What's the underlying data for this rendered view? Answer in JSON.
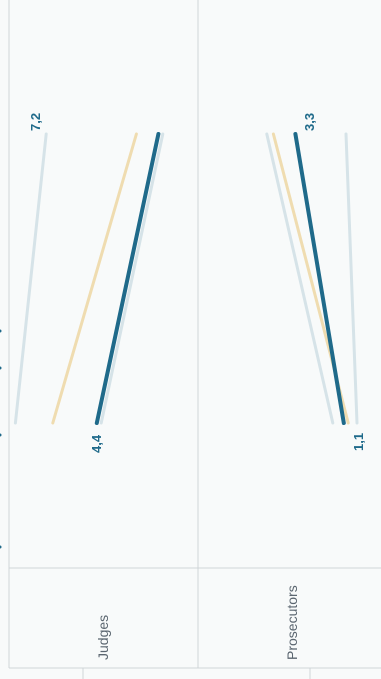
{
  "chart_data": {
    "type": "line",
    "orientation": "rotated-90",
    "categories": [
      "Judges",
      "Prosecutors"
    ],
    "grid": false,
    "legend": "none",
    "series": [
      {
        "values": [
          [
            4.4,
            7.2
          ],
          [
            1.1,
            3.3
          ]
        ],
        "role": "highlight",
        "color": "#1f6a8a",
        "show_labels": true
      },
      {
        "values": [
          [
            4.6,
            7.4
          ],
          [
            1.6,
            4.6
          ]
        ],
        "role": "background",
        "color": "#d6e3e8"
      },
      {
        "values": [
          [
            2.4,
            6.2
          ],
          [
            0.9,
            4.3
          ]
        ],
        "role": "background",
        "color": "#efdcb0"
      },
      {
        "values": [
          [
            0.7,
            2.1
          ],
          [
            0.5,
            1.0
          ]
        ],
        "role": "background",
        "color": "#d6e3e8"
      }
    ],
    "value_labels": {
      "judges_start": "4,4",
      "judges_end": "7,2",
      "prosecutors_start": "1,1",
      "prosecutors_end": "3,3"
    }
  }
}
